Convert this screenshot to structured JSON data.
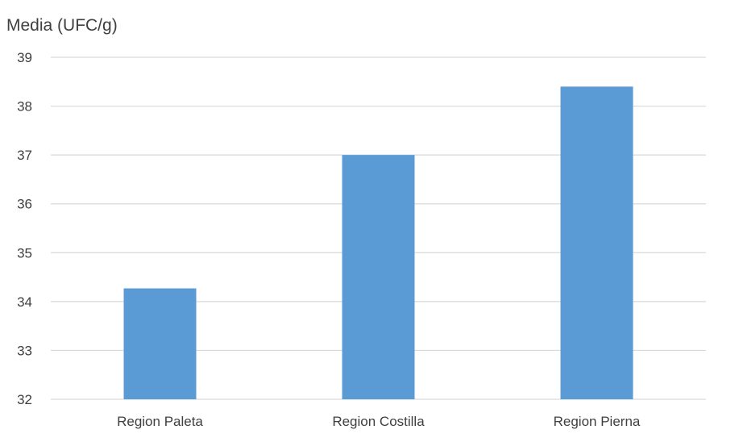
{
  "chart_data": {
    "type": "bar",
    "title": "",
    "ylabel": "Media (UFC/g)",
    "xlabel": "",
    "categories": [
      "Region Paleta",
      "Region Costilla",
      "Region Pierna"
    ],
    "values": [
      34.27,
      37.0,
      38.4
    ],
    "ylim": [
      32,
      39
    ],
    "yticks": [
      "32",
      "33",
      "34",
      "35",
      "36",
      "37",
      "38",
      "39"
    ],
    "grid": true,
    "legend": "none",
    "colors": {
      "bar": "#5b9bd5",
      "grid": "#d9d9d9",
      "text": "#404040"
    }
  }
}
